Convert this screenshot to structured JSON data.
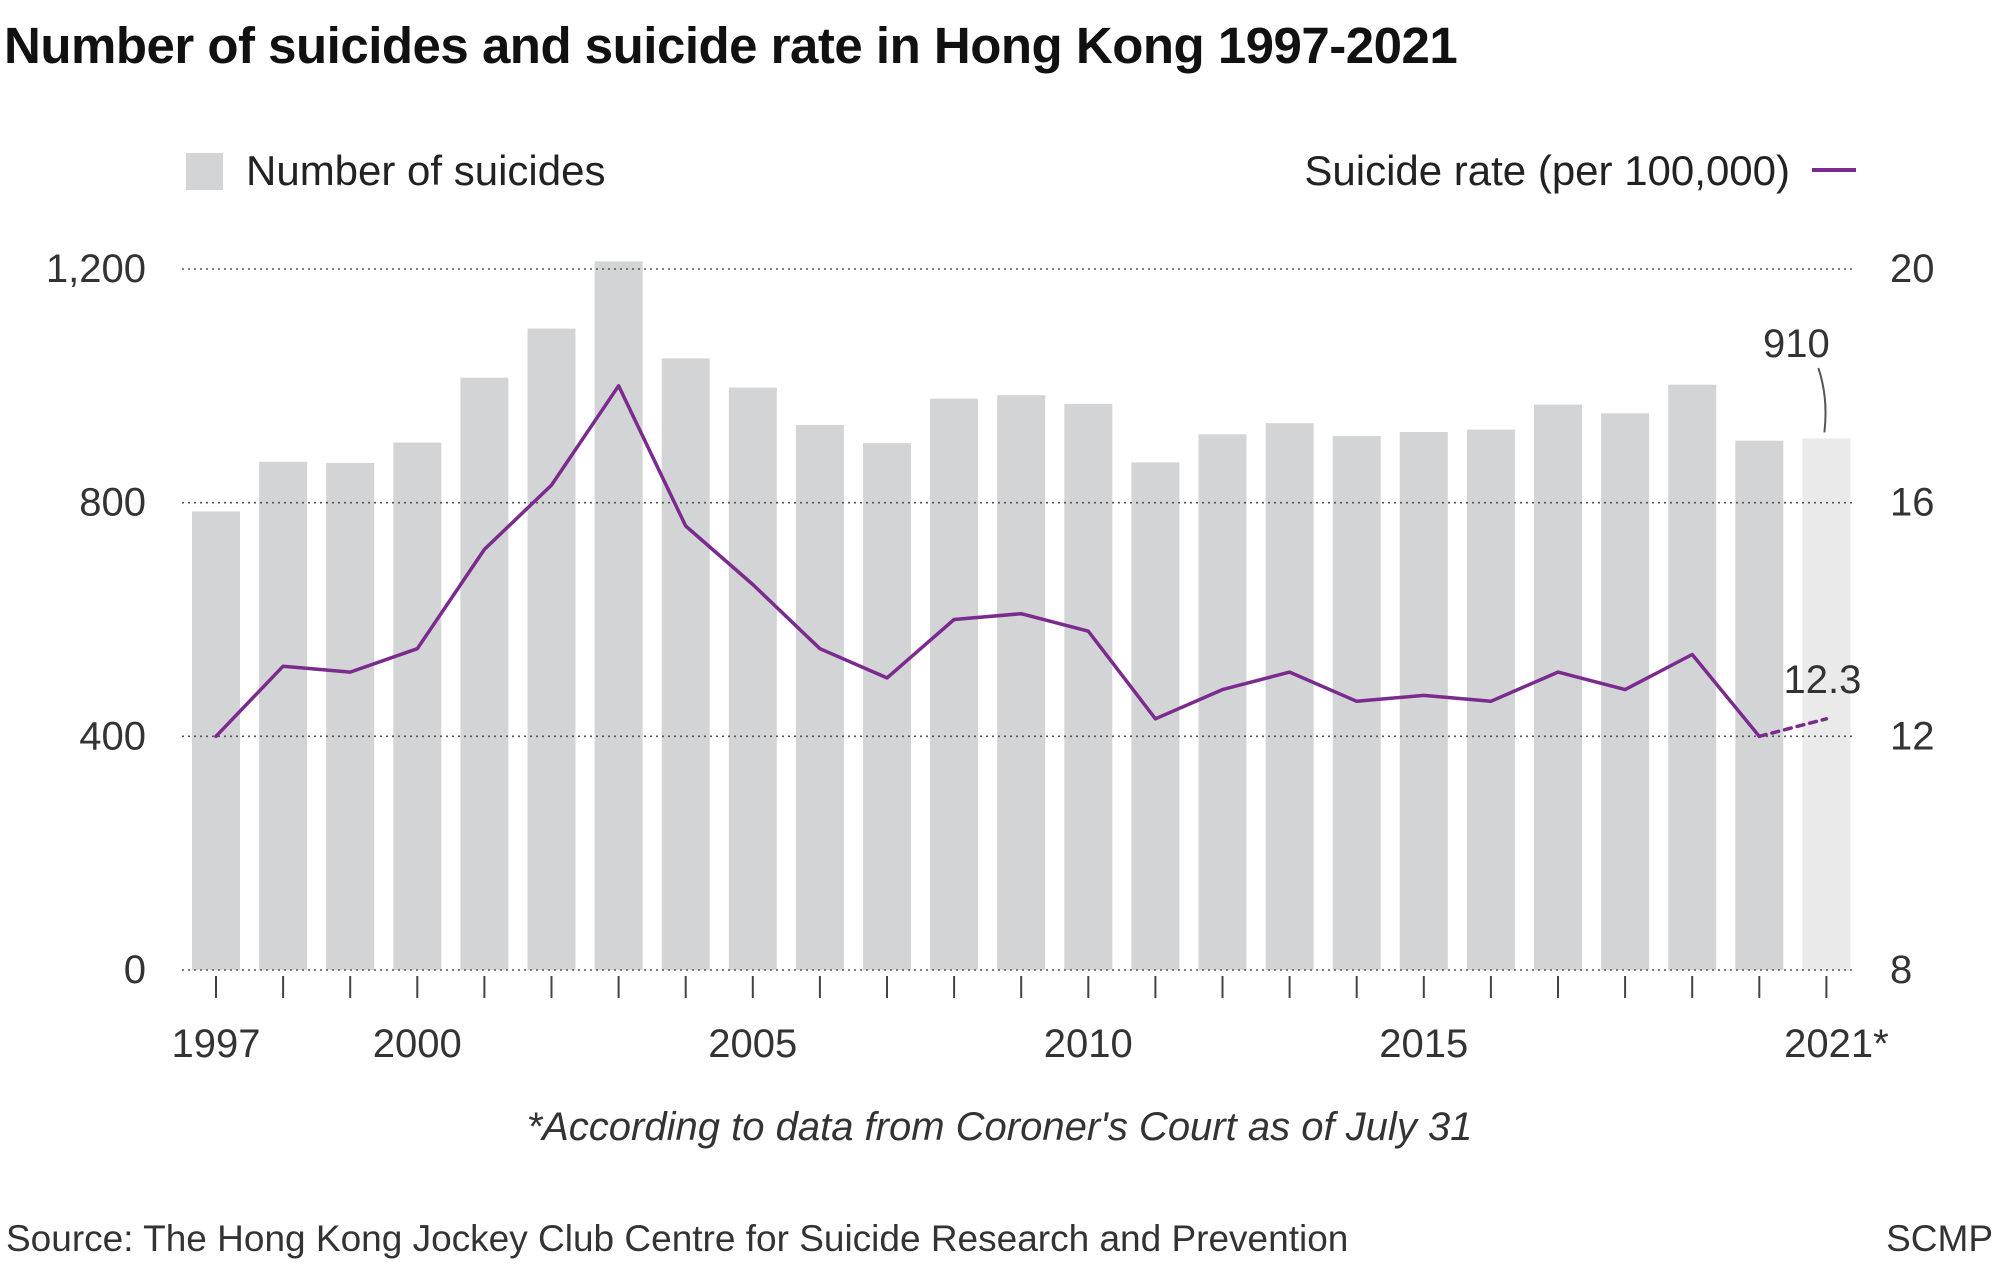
{
  "title": "Number of suicides and suicide rate in Hong Kong 1997-2021",
  "note": "*According to data from Coroner's Court as of July 31",
  "source": "Source: The Hong Kong Jockey Club Centre for Suicide Research and Prevention",
  "brand": "SCMP",
  "colors": {
    "bar": "#d3d4d6",
    "bar_highlight": "#eaeaea",
    "line": "#7b2a8e",
    "grid": "#555555",
    "text": "#333333"
  },
  "chart_data": {
    "type": "bar",
    "x": [
      1997,
      1998,
      1999,
      2000,
      2001,
      2002,
      2003,
      2004,
      2005,
      2006,
      2007,
      2008,
      2009,
      2010,
      2011,
      2012,
      2013,
      2014,
      2015,
      2016,
      2017,
      2018,
      2019,
      2020,
      2021
    ],
    "x_tick_labels": [
      "1997",
      "2000",
      "2005",
      "2010",
      "2015",
      "2021*"
    ],
    "x_tick_years": [
      1997,
      2000,
      2005,
      2010,
      2015,
      2021
    ],
    "series": [
      {
        "name": "Number of suicides",
        "type": "bar",
        "axis": "left",
        "values": [
          785,
          870,
          868,
          903,
          1014,
          1098,
          1213,
          1047,
          997,
          933,
          902,
          978,
          984,
          969,
          869,
          917,
          936,
          914,
          921,
          925,
          968,
          953,
          1002,
          906,
          910
        ]
      },
      {
        "name": "Suicide rate (per 100,000)",
        "type": "line",
        "axis": "right",
        "values": [
          12.0,
          13.2,
          13.1,
          13.5,
          15.2,
          16.3,
          18.0,
          15.6,
          14.6,
          13.5,
          13.0,
          14.0,
          14.1,
          13.8,
          12.3,
          12.8,
          13.1,
          12.6,
          12.7,
          12.6,
          13.1,
          12.8,
          13.4,
          12.0,
          12.3
        ],
        "dashed_last_segment": true
      }
    ],
    "highlight_index": 24,
    "annotations": [
      {
        "text": "910",
        "index": 24,
        "series": 0
      },
      {
        "text": "12.3",
        "index": 24,
        "series": 1
      }
    ],
    "y_left": {
      "ylim": [
        0,
        1200
      ],
      "ticks": [
        0,
        400,
        800,
        1200
      ],
      "labels": [
        "0",
        "400",
        "800",
        "1,200"
      ]
    },
    "y_right": {
      "ylim": [
        8,
        20
      ],
      "ticks": [
        8,
        12,
        16,
        20
      ],
      "labels": [
        "8",
        "12",
        "16",
        "20"
      ]
    },
    "grid": "dotted horizontal",
    "legend": {
      "left": {
        "label": "Number of suicides",
        "placement": "top-left"
      },
      "right": {
        "label": "Suicide rate (per 100,000)",
        "placement": "top-right"
      }
    }
  }
}
